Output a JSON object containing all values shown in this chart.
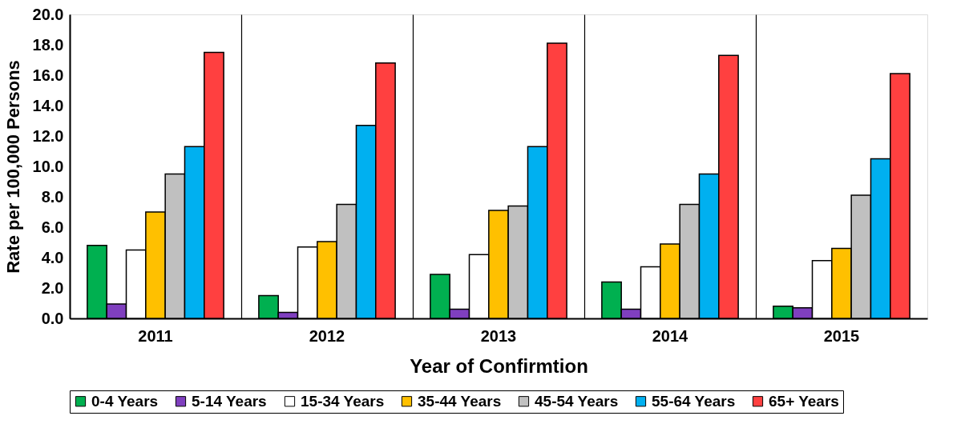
{
  "chart_data": {
    "type": "bar",
    "xlabel": "Year of Confirmtion",
    "ylabel": "Rate per 100,000 Persons",
    "categories": [
      "2011",
      "2012",
      "2013",
      "2014",
      "2015"
    ],
    "series": [
      {
        "name": "0-4 Years",
        "color": "#00b050",
        "values": [
          4.8,
          1.5,
          2.9,
          2.4,
          0.8
        ]
      },
      {
        "name": "5-14 Years",
        "color": "#7f3fbf",
        "values": [
          0.95,
          0.4,
          0.6,
          0.6,
          0.7
        ]
      },
      {
        "name": "15-34 Years",
        "color": "#ffffff",
        "values": [
          4.5,
          4.7,
          4.2,
          3.4,
          3.8
        ]
      },
      {
        "name": "35-44 Years",
        "color": "#ffc000",
        "values": [
          7.0,
          5.05,
          7.1,
          4.9,
          4.6
        ]
      },
      {
        "name": "45-54 Years",
        "color": "#c0c0c0",
        "values": [
          9.5,
          7.5,
          7.4,
          7.5,
          8.1
        ]
      },
      {
        "name": "55-64 Years",
        "color": "#00b0f0",
        "values": [
          11.3,
          12.7,
          11.3,
          9.5,
          10.5
        ]
      },
      {
        "name": "65+ Years",
        "color": "#ff4040",
        "values": [
          17.5,
          16.8,
          18.1,
          17.3,
          16.1
        ]
      }
    ],
    "ylim": [
      0,
      20
    ],
    "yticks": [
      {
        "value": 0,
        "label": "0.0"
      },
      {
        "value": 2,
        "label": "2.0"
      },
      {
        "value": 4,
        "label": "4.0"
      },
      {
        "value": 6,
        "label": "6.0"
      },
      {
        "value": 8,
        "label": "8.0"
      },
      {
        "value": 10,
        "label": "10.0"
      },
      {
        "value": 12,
        "label": "12.0"
      },
      {
        "value": 14,
        "label": "14.0"
      },
      {
        "value": 16,
        "label": "16.0"
      },
      {
        "value": 18,
        "label": "18.0"
      },
      {
        "value": 20,
        "label": "20.0"
      }
    ],
    "grid": "x",
    "legend": "bottom"
  }
}
